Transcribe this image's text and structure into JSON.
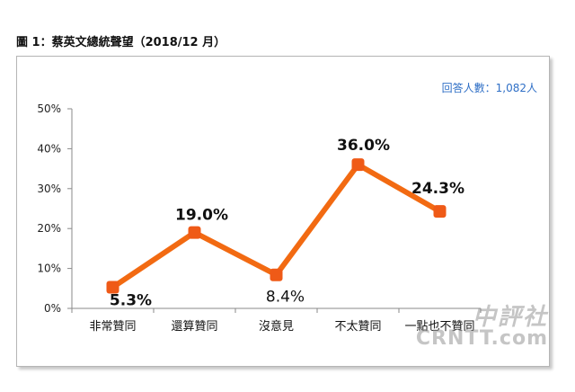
{
  "chart_data": {
    "type": "line",
    "title": "圖 1：蔡英文總統聲望（2018/12 月）",
    "respondents": "回答人數：1,082人",
    "categories": [
      "非常贊同",
      "還算贊同",
      "沒意見",
      "不太贊同",
      "一點也不贊同"
    ],
    "values": [
      5.3,
      19.0,
      8.4,
      36.0,
      24.3
    ],
    "data_labels": [
      "5.3%",
      "19.0%",
      "8.4%",
      "36.0%",
      "24.3%"
    ],
    "ylim": [
      0,
      50
    ],
    "yticks": [
      "0%",
      "10%",
      "20%",
      "30%",
      "40%",
      "50%"
    ],
    "xlabel": "",
    "ylabel": "",
    "grid": false,
    "line_color": "#f26a12",
    "marker_color": "#ef5a17"
  },
  "watermark": {
    "line1": "中評社",
    "line2": "CRNTT.com"
  }
}
